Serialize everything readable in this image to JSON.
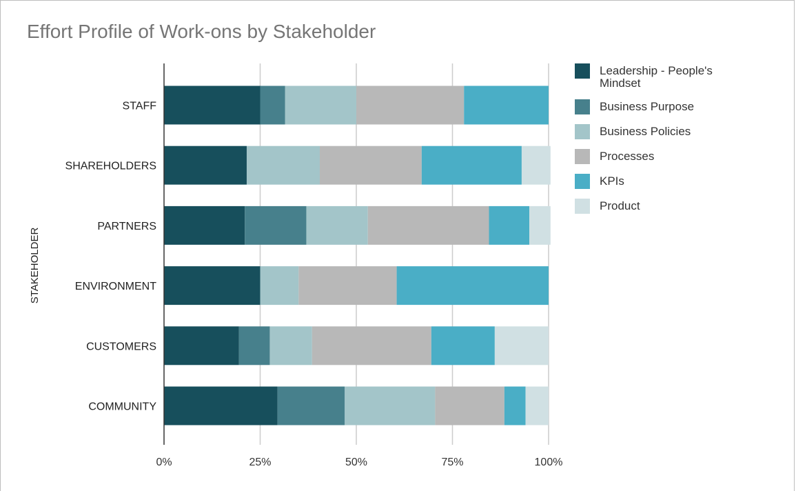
{
  "chart_data": {
    "type": "bar",
    "orientation": "horizontal",
    "stacked": "percent",
    "title": "Effort Profile of Work-ons by Stakeholder",
    "xlabel": "",
    "ylabel": "STAKEHOLDER",
    "xlim": [
      0,
      100
    ],
    "x_ticks": [
      "0%",
      "25%",
      "50%",
      "75%",
      "100%"
    ],
    "categories": [
      "STAFF",
      "SHAREHOLDERS",
      "PARTNERS",
      "ENVIRONMENT",
      "CUSTOMERS",
      "COMMUNITY"
    ],
    "series": [
      {
        "name": "Leadership - People's Mindset",
        "color": "#174f5c",
        "values": [
          25,
          21.5,
          21,
          25,
          19.5,
          29.5
        ]
      },
      {
        "name": "Business Purpose",
        "color": "#47808c",
        "values": [
          6.5,
          0,
          16,
          0,
          8,
          17.5
        ]
      },
      {
        "name": "Business Policies",
        "color": "#a3c5c9",
        "values": [
          18.5,
          19,
          16,
          10,
          11,
          23.5
        ]
      },
      {
        "name": "Processes",
        "color": "#b8b8b8",
        "values": [
          28,
          26.5,
          31.5,
          25.5,
          31,
          18
        ]
      },
      {
        "name": "KPIs",
        "color": "#4aaec6",
        "values": [
          22,
          26,
          10.5,
          39.5,
          16.5,
          5.5
        ]
      },
      {
        "name": "Product",
        "color": "#d0e0e3",
        "values": [
          0,
          7.5,
          5.5,
          0,
          14,
          6
        ]
      }
    ],
    "grid": true,
    "legend_position": "right"
  }
}
